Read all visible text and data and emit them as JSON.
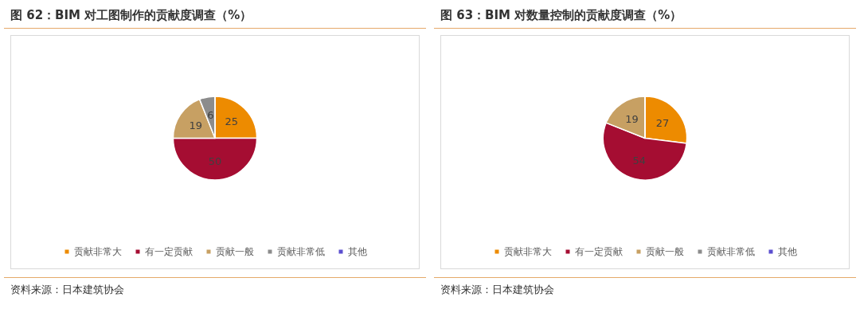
{
  "chart_data": [
    {
      "type": "pie",
      "title": "图 62：BIM 对工图制作的贡献度调查（%）",
      "categories": [
        "贡献非常大",
        "有一定贡献",
        "贡献一般",
        "贡献非常低",
        "其他"
      ],
      "values": [
        25,
        50,
        19,
        6,
        0
      ],
      "colors": [
        "#ed8b00",
        "#a50d32",
        "#c7a063",
        "#8c8c8c",
        "#5b4fcf"
      ],
      "value_labels": [
        "25",
        "50",
        "19",
        "6",
        null
      ],
      "legend": "bottom",
      "annotations": [
        "资料来源：日本建筑协会"
      ]
    },
    {
      "type": "pie",
      "title": "图 63：BIM 对数量控制的贡献度调查（%）",
      "categories": [
        "贡献非常大",
        "有一定贡献",
        "贡献一般",
        "贡献非常低",
        "其他"
      ],
      "values": [
        27,
        54,
        19,
        0,
        0
      ],
      "colors": [
        "#ed8b00",
        "#a50d32",
        "#c7a063",
        "#8c8c8c",
        "#5b4fcf"
      ],
      "value_labels": [
        "27",
        "54",
        "19",
        null,
        null
      ],
      "legend": "bottom",
      "annotations": [
        "资料来源：日本建筑协会"
      ]
    }
  ]
}
